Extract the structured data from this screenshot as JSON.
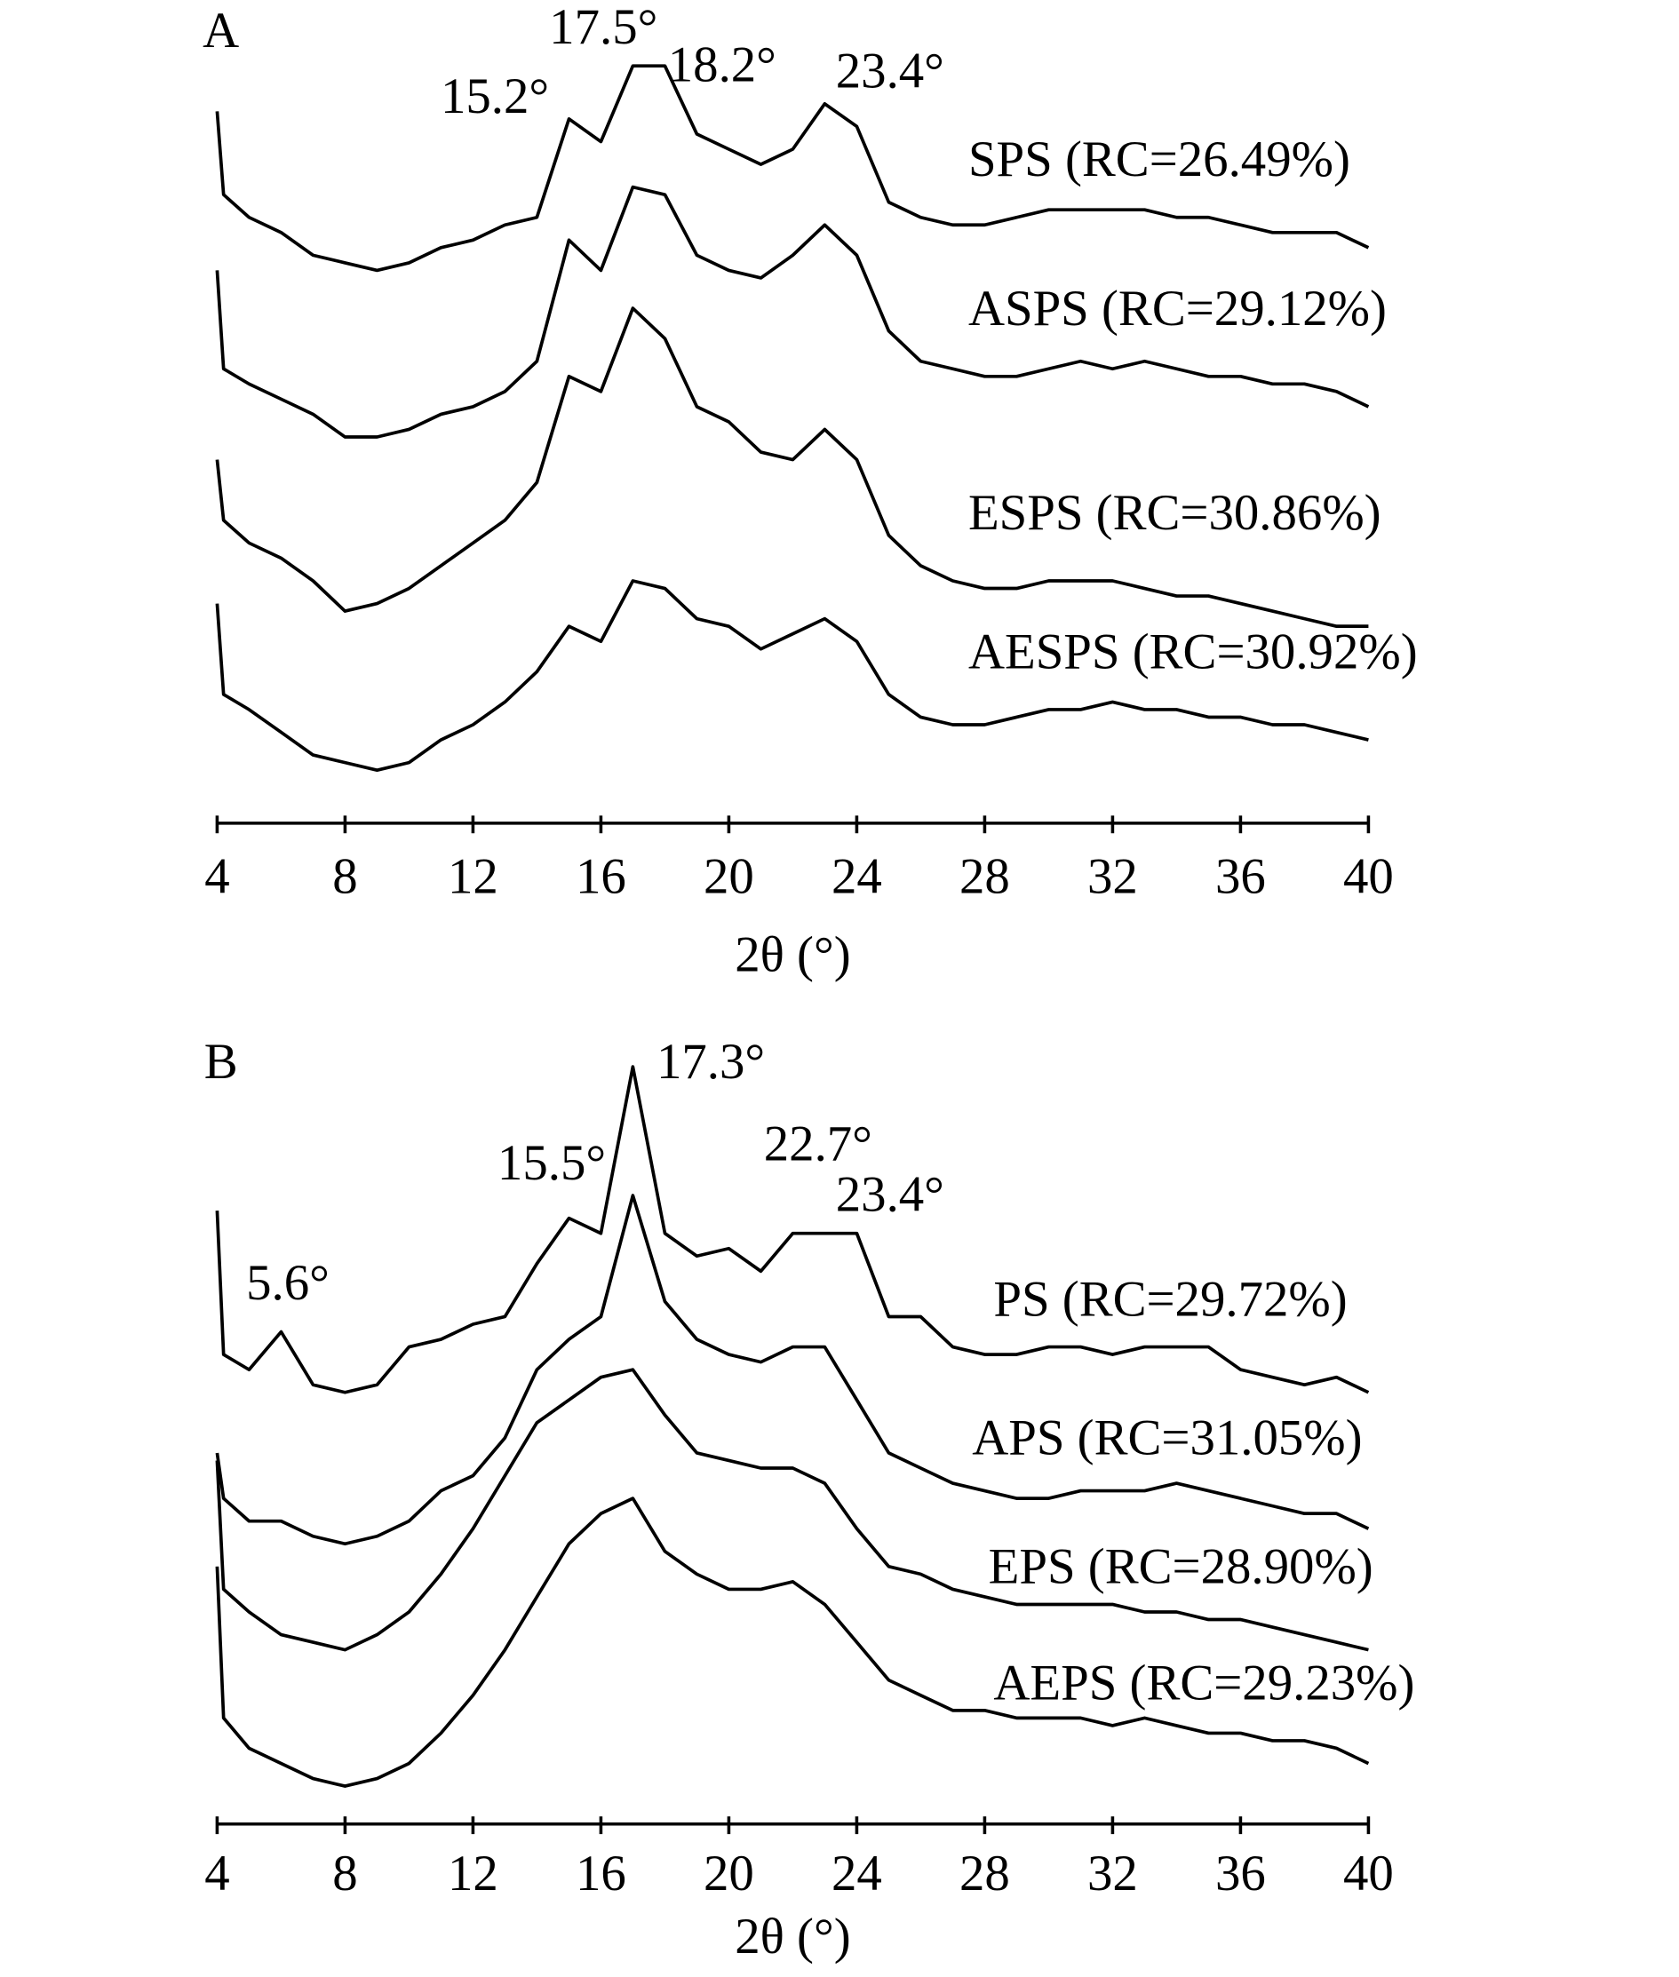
{
  "chart_data": [
    {
      "type": "line",
      "title": "A",
      "xlabel": "2θ (°)",
      "xlim": [
        4,
        40
      ],
      "xticks": [
        4,
        8,
        12,
        16,
        20,
        24,
        28,
        32,
        36,
        40
      ],
      "ylim": [
        0,
        105
      ],
      "x": [
        4,
        4.2,
        5,
        6,
        7,
        8,
        9,
        10,
        11,
        12,
        13,
        14,
        15,
        16,
        17,
        18,
        19,
        20,
        21,
        22,
        23,
        24,
        25,
        26,
        27,
        28,
        29,
        30,
        31,
        32,
        33,
        34,
        35,
        36,
        37,
        38,
        39,
        40
      ],
      "annotations": [
        "15.2°",
        "17.5°",
        "18.2°",
        "23.4°"
      ],
      "series": [
        {
          "name": "SPS (RC=26.49%)",
          "color": "#000000",
          "values": [
            94,
            83,
            80,
            78,
            75,
            74,
            73,
            74,
            76,
            77,
            79,
            80,
            93,
            90,
            100,
            100,
            91,
            89,
            87,
            89,
            95,
            92,
            82,
            80,
            79,
            79,
            80,
            81,
            81,
            81,
            81,
            80,
            80,
            79,
            78,
            78,
            78,
            76
          ]
        },
        {
          "name": "ASPS (RC=29.12%)",
          "color": "#000000",
          "values": [
            73,
            60,
            58,
            56,
            54,
            51,
            51,
            52,
            54,
            55,
            57,
            61,
            77,
            73,
            84,
            83,
            75,
            73,
            72,
            75,
            79,
            75,
            65,
            61,
            60,
            59,
            59,
            60,
            61,
            60,
            61,
            60,
            59,
            59,
            58,
            58,
            57,
            55
          ]
        },
        {
          "name": "ESPS (RC=30.86%)",
          "color": "#000000",
          "values": [
            48,
            40,
            37,
            35,
            32,
            28,
            29,
            31,
            34,
            37,
            40,
            45,
            59,
            57,
            68,
            64,
            55,
            53,
            49,
            48,
            52,
            48,
            38,
            34,
            32,
            31,
            31,
            32,
            32,
            32,
            31,
            30,
            30,
            29,
            28,
            27,
            26,
            26
          ]
        },
        {
          "name": "AESPS (RC=30.92%)",
          "color": "#000000",
          "values": [
            29,
            17,
            15,
            12,
            9,
            8,
            7,
            8,
            11,
            13,
            16,
            20,
            26,
            24,
            32,
            31,
            27,
            26,
            23,
            25,
            27,
            24,
            17,
            14,
            13,
            13,
            14,
            15,
            15,
            16,
            15,
            15,
            14,
            14,
            13,
            13,
            12,
            11
          ]
        }
      ]
    },
    {
      "type": "line",
      "title": "B",
      "xlabel": "2θ (°)",
      "xlim": [
        4,
        40
      ],
      "xticks": [
        4,
        8,
        12,
        16,
        20,
        24,
        28,
        32,
        36,
        40
      ],
      "ylim": [
        0,
        105
      ],
      "x": [
        4,
        4.2,
        5,
        6,
        7,
        8,
        9,
        10,
        11,
        12,
        13,
        14,
        15,
        16,
        17,
        18,
        19,
        20,
        21,
        22,
        23,
        24,
        25,
        26,
        27,
        28,
        29,
        30,
        31,
        32,
        33,
        34,
        35,
        36,
        37,
        38,
        39,
        40
      ],
      "annotations": [
        "5.6°",
        "15.5°",
        "17.3°",
        "22.7°",
        "23.4°"
      ],
      "series": [
        {
          "name": "PS (RC=29.72%)",
          "color": "#000000",
          "values": [
            81,
            62,
            60,
            65,
            58,
            57,
            58,
            63,
            64,
            66,
            67,
            74,
            80,
            78,
            100,
            78,
            75,
            76,
            73,
            78,
            78,
            78,
            67,
            67,
            63,
            62,
            62,
            63,
            63,
            62,
            63,
            63,
            63,
            60,
            59,
            58,
            59,
            57
          ]
        },
        {
          "name": "APS (RC=31.05%)",
          "color": "#000000",
          "values": [
            49,
            43,
            40,
            40,
            38,
            37,
            38,
            40,
            44,
            46,
            51,
            60,
            64,
            67,
            83,
            69,
            64,
            62,
            61,
            63,
            63,
            56,
            49,
            47,
            45,
            44,
            43,
            43,
            44,
            44,
            44,
            45,
            44,
            43,
            42,
            41,
            41,
            39
          ]
        },
        {
          "name": "EPS (RC=28.90%)",
          "color": "#000000",
          "values": [
            48,
            31,
            28,
            25,
            24,
            23,
            25,
            28,
            33,
            39,
            46,
            53,
            56,
            59,
            60,
            54,
            49,
            48,
            47,
            47,
            45,
            39,
            34,
            33,
            31,
            30,
            29,
            29,
            29,
            29,
            28,
            28,
            27,
            27,
            26,
            25,
            24,
            23
          ]
        },
        {
          "name": "AEPS (RC=29.23%)",
          "color": "#000000",
          "values": [
            34,
            14,
            10,
            8,
            6,
            5,
            6,
            8,
            12,
            17,
            23,
            30,
            37,
            41,
            43,
            36,
            33,
            31,
            31,
            32,
            29,
            24,
            19,
            17,
            15,
            15,
            14,
            14,
            14,
            13,
            14,
            13,
            12,
            12,
            11,
            11,
            10,
            8
          ]
        }
      ]
    }
  ]
}
